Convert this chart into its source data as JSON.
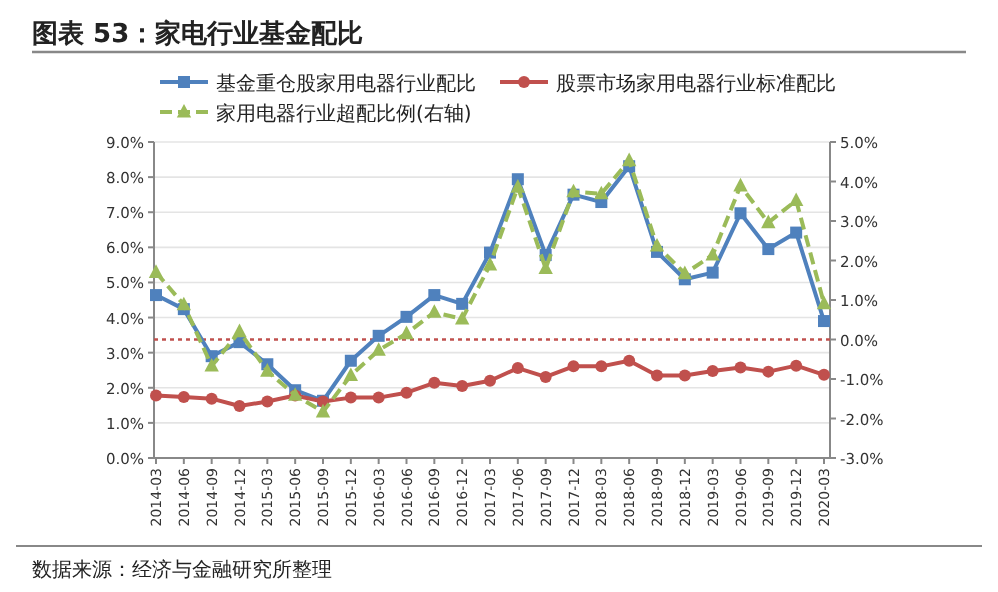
{
  "chart_data": {
    "type": "line",
    "title": "图表 53：家电行业基金配比",
    "categories": [
      "2014-03",
      "2014-06",
      "2014-09",
      "2014-12",
      "2015-03",
      "2015-06",
      "2015-09",
      "2015-12",
      "2016-03",
      "2016-06",
      "2016-09",
      "2016-12",
      "2017-03",
      "2017-06",
      "2017-09",
      "2017-12",
      "2018-03",
      "2018-06",
      "2018-09",
      "2018-12",
      "2019-03",
      "2019-06",
      "2019-09",
      "2019-12",
      "2020-03"
    ],
    "series": [
      {
        "name": "基金重仓股家用电器行业配比",
        "color": "#4f81bd",
        "marker": "square",
        "line_style": "solid",
        "values": [
          4.64,
          4.24,
          2.9,
          3.3,
          2.67,
          1.93,
          1.63,
          2.77,
          3.48,
          4.02,
          4.64,
          4.39,
          5.85,
          7.94,
          5.78,
          7.5,
          7.29,
          8.31,
          5.87,
          5.09,
          5.28,
          6.97,
          5.95,
          6.42,
          3.9
        ]
      },
      {
        "name": "股票市场家用电器行业标准配比",
        "color": "#c0504d",
        "marker": "circle",
        "line_style": "solid",
        "values": [
          1.78,
          1.74,
          1.69,
          1.48,
          1.61,
          1.78,
          1.61,
          1.72,
          1.72,
          1.86,
          2.14,
          2.05,
          2.2,
          2.56,
          2.31,
          2.61,
          2.61,
          2.77,
          2.35,
          2.35,
          2.48,
          2.58,
          2.46,
          2.63,
          2.37
        ]
      },
      {
        "name": "家用电器行业超配比例(右轴)",
        "color": "#9bbb59",
        "marker": "triangle",
        "line_style": "dashed",
        "axis": "y2",
        "values": [
          1.7,
          0.88,
          -0.67,
          0.2,
          -0.8,
          -1.41,
          -1.83,
          -0.91,
          -0.27,
          0.15,
          0.69,
          0.52,
          1.89,
          3.86,
          1.8,
          3.74,
          3.69,
          4.53,
          2.37,
          1.67,
          2.14,
          3.89,
          2.96,
          3.52,
          0.91
        ]
      }
    ],
    "ylim": [
      0,
      9
    ],
    "yticks": [
      {
        "value": 0,
        "label": "0.0%"
      },
      {
        "value": 1,
        "label": "1.0%"
      },
      {
        "value": 2,
        "label": "2.0%"
      },
      {
        "value": 3,
        "label": "3.0%"
      },
      {
        "value": 4,
        "label": "4.0%"
      },
      {
        "value": 5,
        "label": "5.0%"
      },
      {
        "value": 6,
        "label": "6.0%"
      },
      {
        "value": 7,
        "label": "7.0%"
      },
      {
        "value": 8,
        "label": "8.0%"
      },
      {
        "value": 9,
        "label": "9.0%"
      }
    ],
    "y2lim": [
      -3,
      5
    ],
    "y2ticks": [
      {
        "value": -3,
        "label": "-3.0%"
      },
      {
        "value": -2,
        "label": "-2.0%"
      },
      {
        "value": -1,
        "label": "-1.0%"
      },
      {
        "value": 0,
        "label": "0.0%"
      },
      {
        "value": 1,
        "label": "1.0%"
      },
      {
        "value": 2,
        "label": "2.0%"
      },
      {
        "value": 3,
        "label": "3.0%"
      },
      {
        "value": 4,
        "label": "4.0%"
      },
      {
        "value": 5,
        "label": "5.0%"
      }
    ],
    "ref_lines": [
      {
        "axis": "y2",
        "value": 0,
        "color": "#c0504d",
        "line_style": "dotted"
      }
    ],
    "grid": "y",
    "legend": "top",
    "annotations": [
      "数据来源：经济与金融研究所整理"
    ]
  }
}
